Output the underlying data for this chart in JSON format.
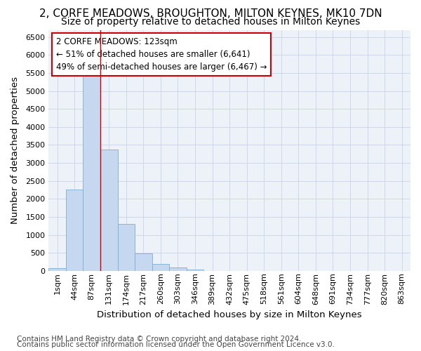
{
  "title_line1": "2, CORFE MEADOWS, BROUGHTON, MILTON KEYNES, MK10 7DN",
  "title_line2": "Size of property relative to detached houses in Milton Keynes",
  "xlabel": "Distribution of detached houses by size in Milton Keynes",
  "ylabel": "Number of detached properties",
  "footer_line1": "Contains HM Land Registry data © Crown copyright and database right 2024.",
  "footer_line2": "Contains public sector information licensed under the Open Government Licence v3.0.",
  "bar_labels": [
    "1sqm",
    "44sqm",
    "87sqm",
    "131sqm",
    "174sqm",
    "217sqm",
    "260sqm",
    "303sqm",
    "346sqm",
    "389sqm",
    "432sqm",
    "475sqm",
    "518sqm",
    "561sqm",
    "604sqm",
    "648sqm",
    "691sqm",
    "734sqm",
    "777sqm",
    "820sqm",
    "863sqm"
  ],
  "bar_values": [
    75,
    2250,
    5420,
    3380,
    1300,
    490,
    195,
    90,
    30,
    0,
    0,
    0,
    0,
    0,
    0,
    0,
    0,
    0,
    0,
    0,
    0
  ],
  "bar_color": "#c5d8f0",
  "bar_edgecolor": "#7bafd4",
  "grid_color": "#c8d4e8",
  "bg_color": "#edf1f8",
  "vline_color": "#cc0000",
  "annotation_line1": "2 CORFE MEADOWS: 123sqm",
  "annotation_line2": "← 51% of detached houses are smaller (6,641)",
  "annotation_line3": "49% of semi-detached houses are larger (6,467) →",
  "annotation_box_edgecolor": "#cc0000",
  "annotation_box_facecolor": "#ffffff",
  "ylim": [
    0,
    6700
  ],
  "yticks": [
    0,
    500,
    1000,
    1500,
    2000,
    2500,
    3000,
    3500,
    4000,
    4500,
    5000,
    5500,
    6000,
    6500
  ],
  "title1_fontsize": 11,
  "title2_fontsize": 10,
  "axis_label_fontsize": 9.5,
  "tick_fontsize": 8,
  "annotation_fontsize": 8.5,
  "footer_fontsize": 7.5
}
